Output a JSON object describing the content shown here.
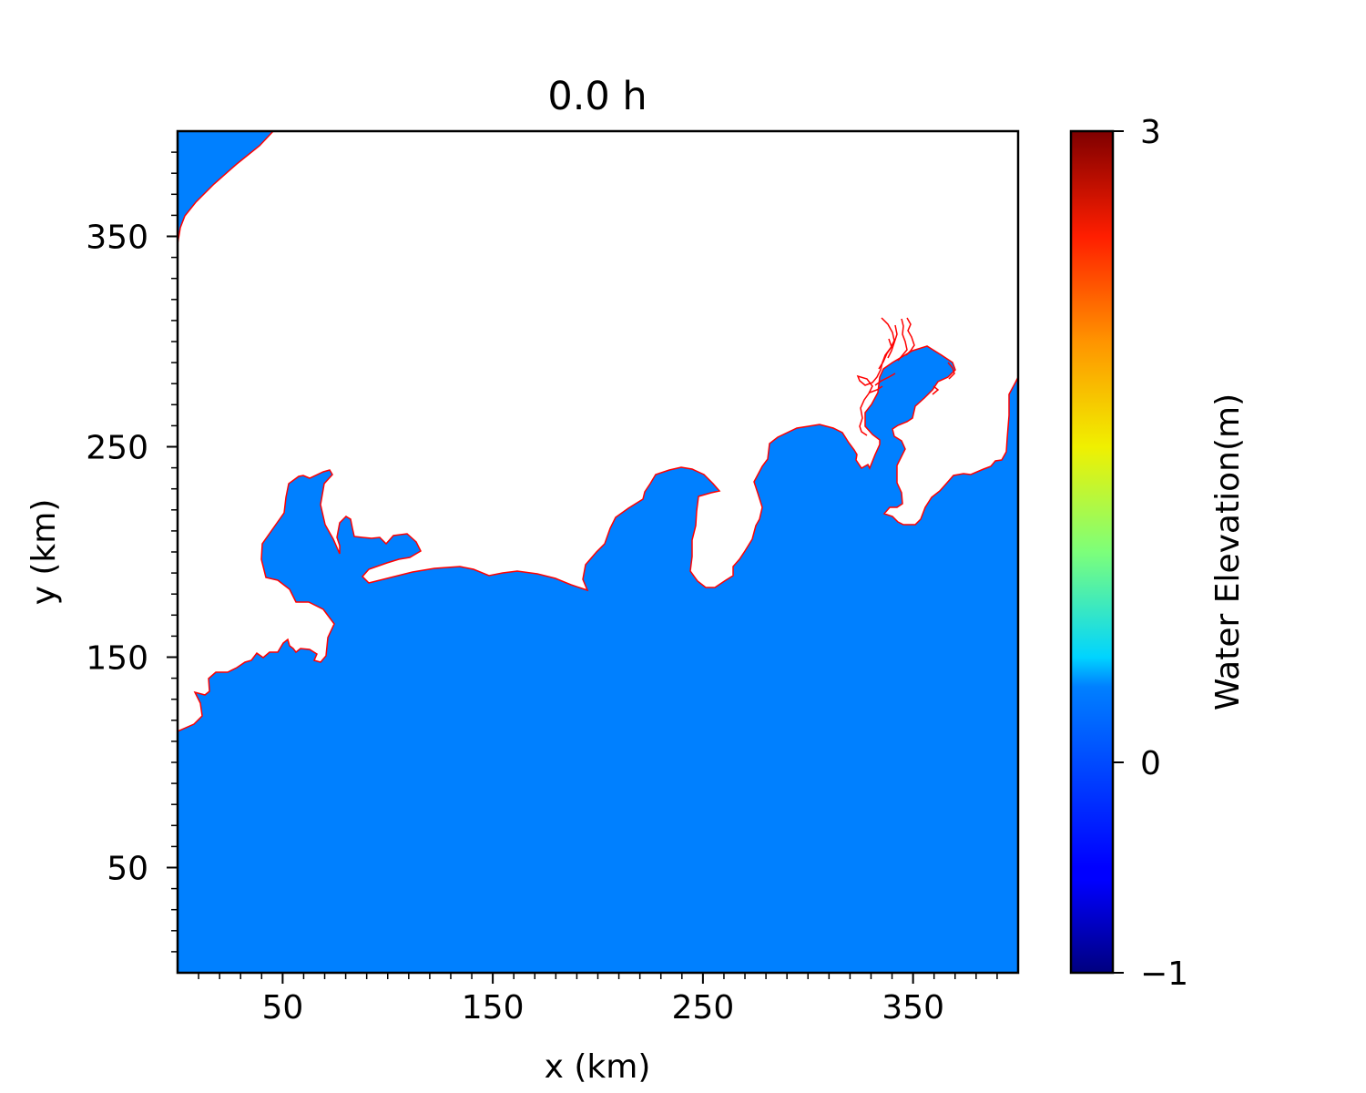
{
  "chart_data": {
    "type": "heatmap",
    "title": "0.0 h",
    "xlabel": "x (km)",
    "ylabel": "y (km)",
    "xlim": [
      0,
      400
    ],
    "ylim": [
      0,
      400
    ],
    "x_ticks": [
      50,
      150,
      250,
      350
    ],
    "y_ticks": [
      50,
      150,
      250,
      350
    ],
    "grid": false,
    "colorbar": {
      "label": "Water Elevation(m)",
      "range": [
        -1,
        3
      ],
      "ticks": [
        3,
        0,
        -1
      ],
      "tick_labels": [
        "3",
        "0",
        "−1"
      ],
      "colormap": "jet"
    },
    "field": {
      "uniform_value": 0,
      "fill_color": "#0080ff",
      "coastline_color": "#ff0000"
    }
  }
}
